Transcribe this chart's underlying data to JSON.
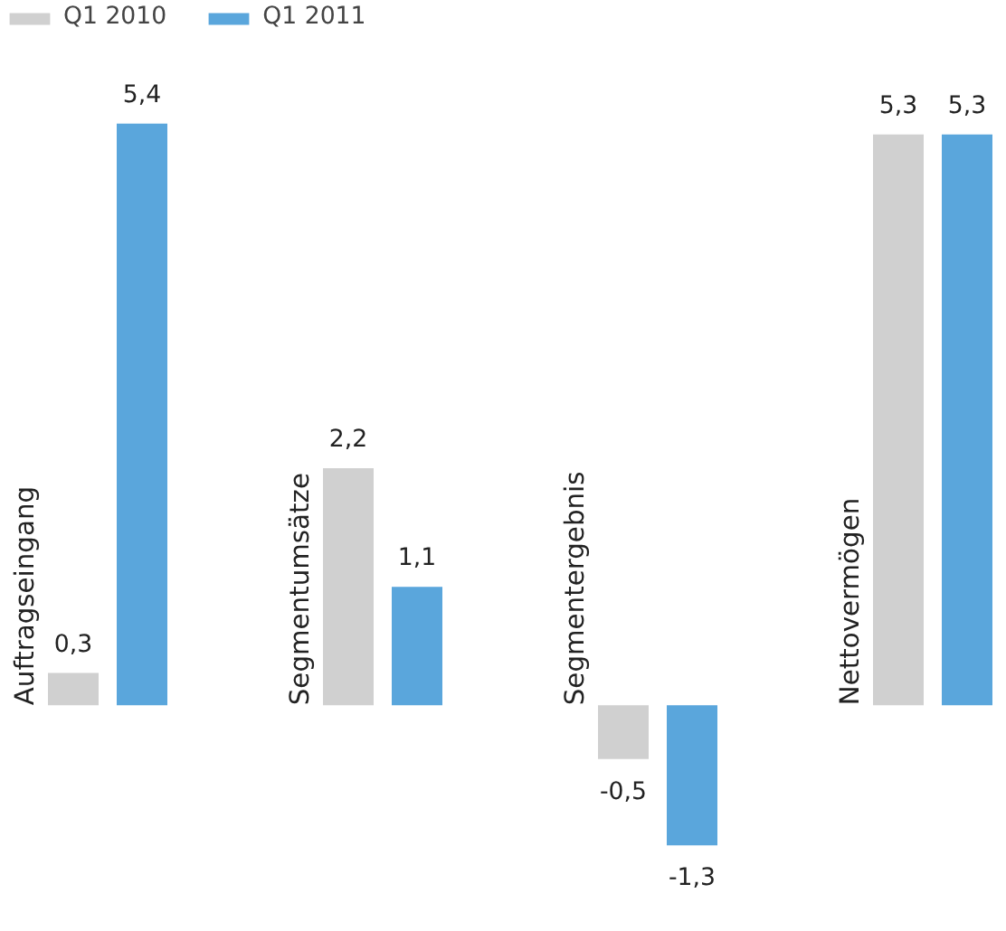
{
  "chart_data": {
    "type": "bar",
    "categories": [
      "Auftragseingang",
      "Segmentumsätze",
      "Segmentergebnis",
      "Nettovermögen"
    ],
    "series": [
      {
        "name": "Q1 2010",
        "color": "#d0d0d0",
        "values": [
          0.3,
          2.2,
          -0.5,
          5.3
        ],
        "value_labels": [
          "0,3",
          "2,2",
          "-0,5",
          "5,3"
        ]
      },
      {
        "name": "Q1 2011",
        "color": "#5aa6dc",
        "values": [
          5.4,
          1.1,
          -1.3,
          5.3
        ],
        "value_labels": [
          "5,4",
          "1,1",
          "-1,3",
          "5,3"
        ]
      }
    ],
    "legend": "top left"
  }
}
